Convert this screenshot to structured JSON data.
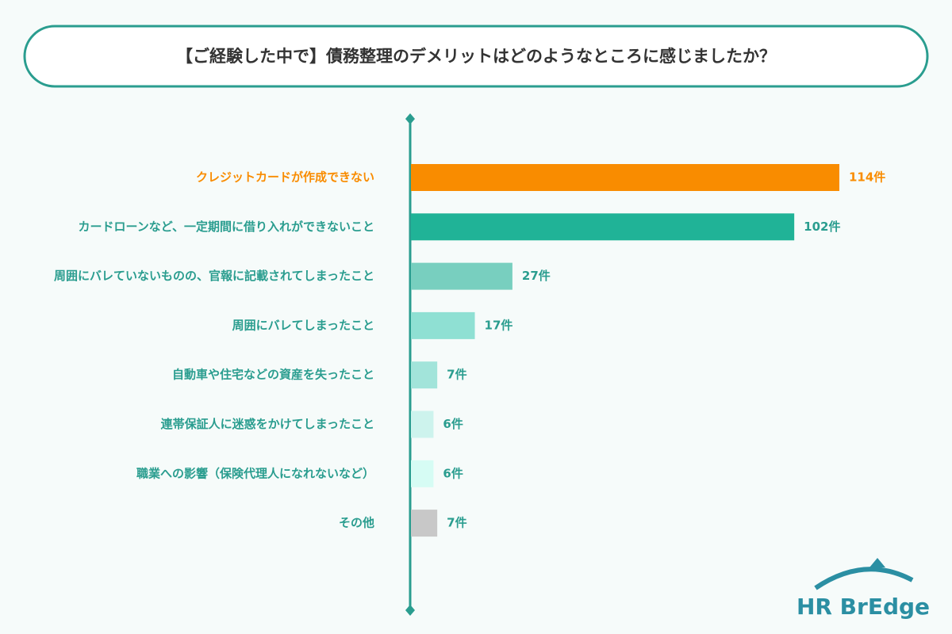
{
  "chart_data": {
    "type": "hbar",
    "title": "【ご経験した中で】債務整理のデメリットはどのようなところに感じましたか？",
    "categories": [
      "クレジットカードが作成できない",
      "カードローンなど、一定期間に借り入れができないこと",
      "周囲にバレていないものの、官報に記載されてしまったこと",
      "周囲にバレてしまったこと",
      "自動車や住宅などの資産を失ったこと",
      "連帯保証人に迷惑をかけてしまったこと",
      "職業への影響（保険代理人になれないなど）",
      "その他"
    ],
    "values": [
      114,
      102,
      27,
      17,
      7,
      6,
      6,
      7
    ],
    "value_labels": [
      "114件",
      "102件",
      "27件",
      "17件",
      "7件",
      "6件",
      "6件",
      "7件"
    ],
    "colors": [
      "#f98c00",
      "#20b397",
      "#78cfbf",
      "#8fe0d3",
      "#a2e4da",
      "#cdf3ed",
      "#d6fcf4",
      "#c8c8c8"
    ]
  },
  "logo": "HR BrEdge"
}
